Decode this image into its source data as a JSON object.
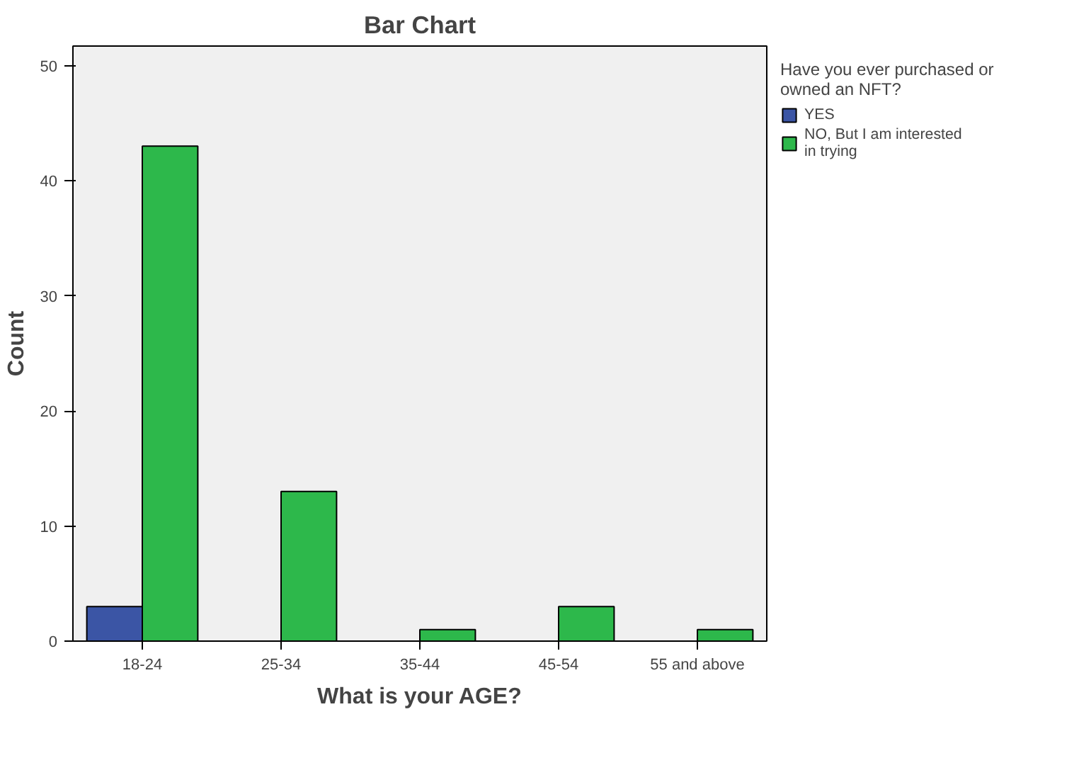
{
  "chart_data": {
    "type": "bar",
    "title": "Bar Chart",
    "xlabel": "What is your AGE?",
    "ylabel": "Count",
    "legend_title": "Have you ever purchased or owned an NFT?",
    "categories": [
      "18-24",
      "25-34",
      "35-44",
      "45-54",
      "55 and above"
    ],
    "series": [
      {
        "name": "YES",
        "color": "#3b55a5",
        "values": [
          3,
          null,
          null,
          null,
          null
        ]
      },
      {
        "name": "NO, But I am interested in trying",
        "color": "#2db84b",
        "values": [
          43,
          13,
          1,
          3,
          1
        ]
      }
    ],
    "ylim": [
      0,
      51.7
    ],
    "yticks": [
      0,
      10,
      20,
      30,
      40,
      50
    ],
    "grid": false,
    "legend": "right"
  }
}
